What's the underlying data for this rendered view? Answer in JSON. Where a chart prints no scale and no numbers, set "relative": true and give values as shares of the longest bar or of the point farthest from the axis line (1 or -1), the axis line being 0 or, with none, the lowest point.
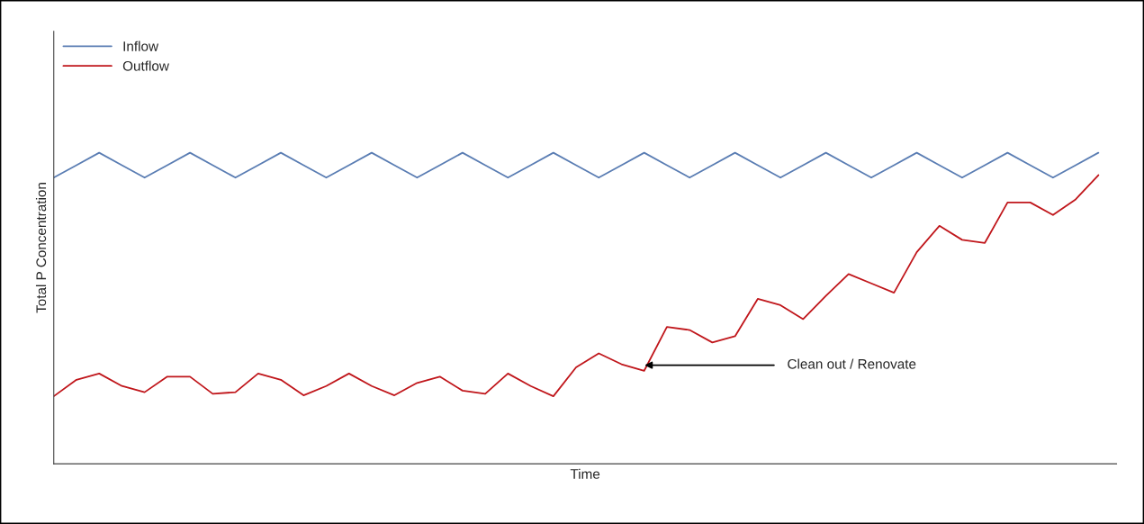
{
  "chart_data": {
    "type": "line",
    "relative": true,
    "xlabel": "Time",
    "ylabel": "Total P Concentration",
    "legend": "top left",
    "categories": [
      null,
      null,
      null,
      null,
      null,
      null,
      null,
      null,
      null,
      null,
      null,
      null,
      null,
      null,
      null,
      null,
      null,
      null,
      null,
      null,
      null,
      null,
      null,
      null,
      null,
      null,
      null,
      null,
      null,
      null,
      null,
      null,
      null,
      null,
      null,
      null,
      null,
      null,
      null,
      null,
      null,
      null,
      null,
      null,
      null,
      null,
      null
    ],
    "series": [
      {
        "name": "Inflow",
        "color": "#5a7db3",
        "values": [
          0.92,
          0.96,
          1.0,
          0.96,
          0.92,
          0.96,
          1.0,
          0.96,
          0.92,
          0.96,
          1.0,
          0.96,
          0.92,
          0.96,
          1.0,
          0.96,
          0.92,
          0.96,
          1.0,
          0.96,
          0.92,
          0.96,
          1.0,
          0.96,
          0.92,
          0.96,
          1.0,
          0.96,
          0.92,
          0.96,
          1.0,
          0.96,
          0.92,
          0.96,
          1.0,
          0.96,
          0.92,
          0.96,
          1.0,
          0.96,
          0.92,
          0.96,
          1.0,
          0.96,
          0.92,
          0.96,
          1.0
        ]
      },
      {
        "name": "Outflow",
        "color": "#c0161b",
        "values": [
          0.217,
          0.27,
          0.29,
          0.25,
          0.23,
          0.28,
          0.28,
          0.225,
          0.23,
          0.29,
          0.27,
          0.22,
          0.25,
          0.29,
          0.25,
          0.22,
          0.26,
          0.28,
          0.235,
          0.225,
          0.29,
          0.25,
          0.217,
          0.31,
          0.355,
          0.32,
          0.299,
          0.44,
          0.43,
          0.39,
          0.41,
          0.53,
          0.51,
          0.465,
          0.54,
          0.61,
          0.58,
          0.55,
          0.68,
          0.765,
          0.72,
          0.71,
          0.84,
          0.84,
          0.8,
          0.85,
          0.928
        ]
      }
    ],
    "annotations": [
      "Clean out / Renovate"
    ]
  }
}
